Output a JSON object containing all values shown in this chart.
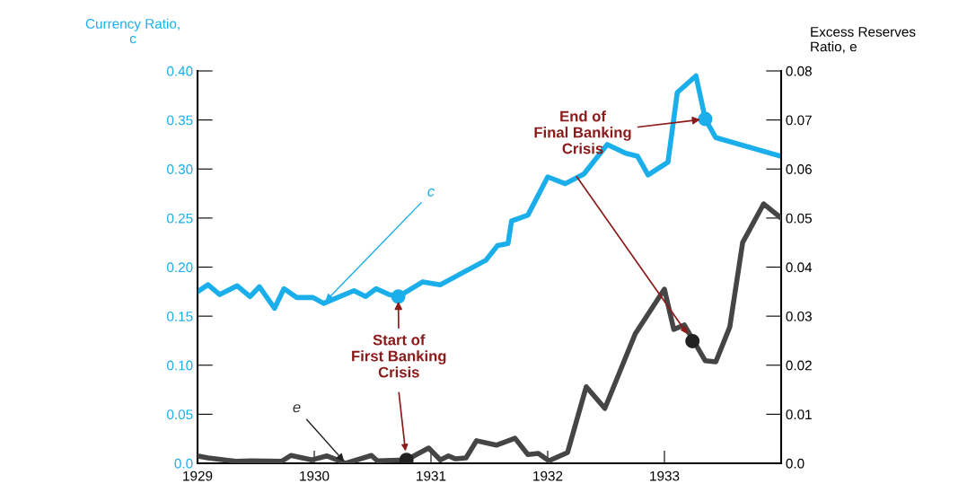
{
  "chart_data": {
    "type": "line",
    "ylabel": "Currency Ratio,\nc",
    "y2label": "Excess Reserves\nRatio, e",
    "xlim": [
      1929,
      1934
    ],
    "xticks": [
      1929,
      1930,
      1931,
      1932,
      1933
    ],
    "ylim": [
      0,
      0.4
    ],
    "yticks": [
      {
        "value": 0,
        "label": "0.0"
      },
      0.05,
      {
        "value": 0.1,
        "label": "0.10"
      },
      0.15,
      {
        "value": 0.2,
        "label": "0.20"
      },
      0.25,
      {
        "value": 0.3,
        "label": "0.30"
      },
      0.35,
      {
        "value": 0.4,
        "label": "0.40"
      }
    ],
    "y2lim": [
      0,
      0.08
    ],
    "y2ticks": [
      {
        "value": 0,
        "label": "0.0"
      },
      0.01,
      0.02,
      0.03,
      0.04,
      0.05,
      0.06,
      0.07,
      0.08
    ],
    "grid": false,
    "legend": false,
    "series": [
      {
        "name": "c",
        "color": "#1aaeea",
        "x": [
          1929.0,
          1929.09,
          1929.19,
          1929.34,
          1929.45,
          1929.53,
          1929.66,
          1929.74,
          1929.85,
          1929.99,
          1930.08,
          1930.34,
          1930.44,
          1930.53,
          1930.64,
          1930.72,
          1930.93,
          1931.08,
          1931.47,
          1931.57,
          1931.66,
          1931.69,
          1931.83,
          1932.0,
          1932.15,
          1932.31,
          1932.51,
          1932.67,
          1932.77,
          1932.86,
          1933.03,
          1933.11,
          1933.27,
          1933.35,
          1933.44,
          1934.0
        ],
        "values": [
          0.175,
          0.182,
          0.172,
          0.181,
          0.17,
          0.18,
          0.158,
          0.178,
          0.169,
          0.169,
          0.163,
          0.176,
          0.17,
          0.178,
          0.172,
          0.17,
          0.185,
          0.182,
          0.207,
          0.222,
          0.224,
          0.247,
          0.253,
          0.292,
          0.285,
          0.295,
          0.325,
          0.316,
          0.313,
          0.294,
          0.307,
          0.378,
          0.395,
          0.351,
          0.332,
          0.313
        ]
      },
      {
        "name": "e",
        "axis": "y2",
        "color": "#454545",
        "x": [
          1929.0,
          1929.09,
          1929.33,
          1929.46,
          1929.72,
          1929.8,
          1929.98,
          1930.11,
          1930.27,
          1930.49,
          1930.54,
          1930.79,
          1930.98,
          1931.08,
          1931.15,
          1931.21,
          1931.3,
          1931.39,
          1931.56,
          1931.72,
          1931.83,
          1931.92,
          1932.01,
          1932.17,
          1932.33,
          1932.49,
          1932.75,
          1933.0,
          1933.08,
          1933.17,
          1933.35,
          1933.44,
          1933.56,
          1933.67,
          1933.85,
          1934.0
        ],
        "values": [
          0.0015,
          0.0011,
          0.0004,
          0.0005,
          0.0004,
          0.0016,
          0.0007,
          0.0015,
          0.0,
          0.0016,
          0.0005,
          0.0007,
          0.0031,
          0.0007,
          0.0015,
          0.0009,
          0.0011,
          0.0046,
          0.0037,
          0.0051,
          0.0018,
          0.002,
          0.0005,
          0.0022,
          0.0156,
          0.0112,
          0.0264,
          0.0355,
          0.0273,
          0.0282,
          0.0209,
          0.0207,
          0.0278,
          0.045,
          0.0529,
          0.05
        ]
      },
      {
        "type": "scatter",
        "color": "#1aaeea",
        "x": [
          1930.72,
          1933.35
        ],
        "values": [
          0.17,
          0.351
        ]
      },
      {
        "type": "scatter",
        "axis": "y2",
        "color": "#222222",
        "x": [
          1930.79,
          1933.24
        ],
        "values": [
          0.0007,
          0.0249
        ]
      }
    ],
    "annotations": [
      {
        "text": "Start of\nFirst Banking\nCrisis",
        "x": 1930.72,
        "y": 0.17
      },
      {
        "text": "End of\nFinal Banking\nCrisis",
        "x": 1933.35,
        "y": 0.351
      }
    ]
  }
}
